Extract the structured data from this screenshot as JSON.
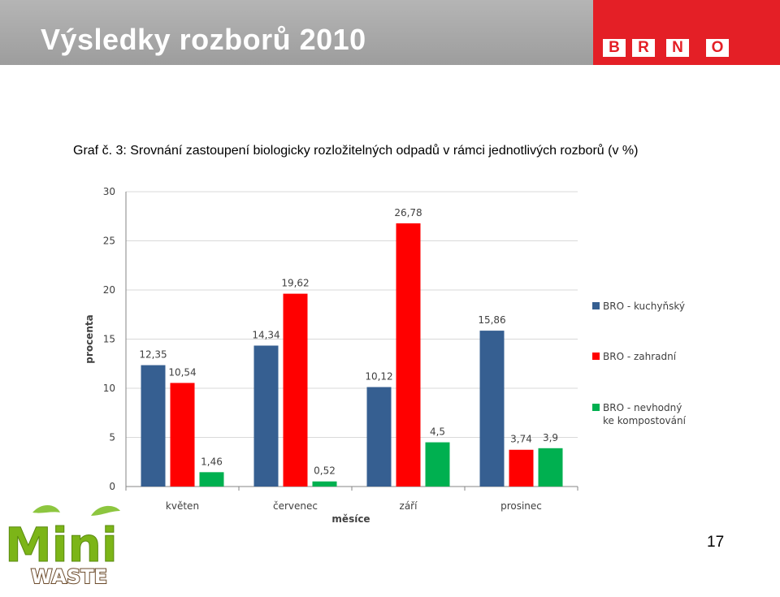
{
  "header": {
    "title": "Výsledky rozborů 2010"
  },
  "brand": {
    "letters": [
      "B",
      "R",
      "N",
      "O"
    ],
    "color": "#e41f26"
  },
  "caption": "Graf č. 3: Srovnání zastoupení biologicky rozložitelných odpadů v rámci jednotlivých rozborů (v %)",
  "page_number": "17",
  "logo": {
    "text_top": "Mini",
    "text_bottom": "WASTE"
  },
  "chart_data": {
    "type": "bar",
    "title": "",
    "xlabel": "měsíce",
    "ylabel": "procenta",
    "ylim": [
      0,
      30
    ],
    "yticks": [
      0,
      5,
      10,
      15,
      20,
      25,
      30
    ],
    "grid": true,
    "legend_position": "right",
    "categories": [
      "květen",
      "červenec",
      "září",
      "prosinec"
    ],
    "series": [
      {
        "name": "BRO - kuchyňský",
        "color": "#365f91",
        "values": [
          12.35,
          14.34,
          10.12,
          15.86
        ],
        "labels": [
          "12,35",
          "14,34",
          "10,12",
          "15,86"
        ]
      },
      {
        "name": "BRO - zahradní",
        "color": "#ff0000",
        "values": [
          10.54,
          19.62,
          26.78,
          3.74
        ],
        "labels": [
          "10,54",
          "19,62",
          "26,78",
          "3,74"
        ]
      },
      {
        "name": "BRO - nevhodný ke kompostování",
        "color": "#00b050",
        "values": [
          1.46,
          0.52,
          4.5,
          3.9
        ],
        "labels": [
          "1,46",
          "0,52",
          "4,5",
          "3,9"
        ]
      }
    ]
  }
}
